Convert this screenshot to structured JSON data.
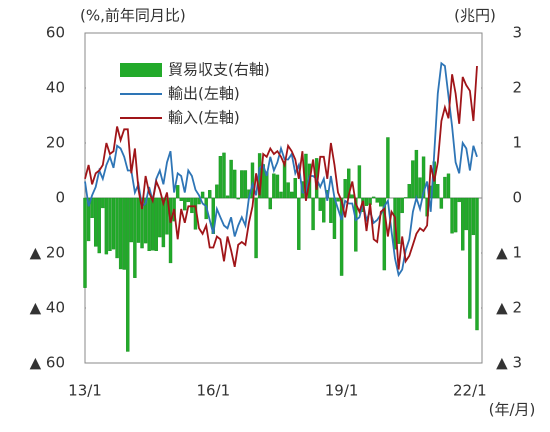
{
  "chart_data": {
    "type": "bar_line",
    "y_label": "(%,前年同月比)",
    "y2_label": "(兆円)",
    "x_label": "(年/月)",
    "categories": [
      "13/1",
      null,
      null,
      null,
      null,
      null,
      null,
      null,
      null,
      null,
      null,
      null,
      null,
      null,
      null,
      null,
      null,
      null,
      null,
      null,
      null,
      null,
      null,
      null,
      null,
      null,
      null,
      null,
      null,
      null,
      null,
      null,
      null,
      null,
      null,
      null,
      "16/1",
      null,
      null,
      null,
      null,
      null,
      null,
      null,
      null,
      null,
      null,
      null,
      null,
      null,
      null,
      null,
      null,
      null,
      null,
      null,
      null,
      null,
      null,
      null,
      null,
      null,
      null,
      null,
      null,
      null,
      null,
      null,
      null,
      null,
      null,
      null,
      "19/1",
      null,
      null,
      null,
      null,
      null,
      null,
      null,
      null,
      null,
      null,
      null,
      null,
      null,
      null,
      null,
      null,
      null,
      null,
      null,
      null,
      null,
      null,
      null,
      null,
      null,
      null,
      null,
      null,
      null,
      null,
      null,
      null,
      null,
      null,
      null,
      "22/1",
      null,
      null
    ],
    "ylim": [
      -60,
      60
    ],
    "yticks": [
      {
        "value": -60,
        "label": "▲ 60"
      },
      {
        "value": -40,
        "label": "▲ 40"
      },
      {
        "value": -20,
        "label": "▲ 20"
      },
      0,
      20,
      40,
      60
    ],
    "y2lim": [
      -3,
      3
    ],
    "y2ticks": [
      {
        "value": -3,
        "label": "▲ 3"
      },
      {
        "value": -2,
        "label": "▲ 2"
      },
      {
        "value": -1,
        "label": "▲ 1"
      },
      0,
      1,
      2,
      3
    ],
    "series": [
      {
        "name": "貿易収支(右軸)",
        "kind": "bar",
        "axis": "y2",
        "color": "#22aa2a",
        "values": [
          -1.63,
          -0.78,
          -0.36,
          -0.88,
          -1.0,
          -0.18,
          -1.02,
          -0.96,
          -0.93,
          -1.09,
          -1.29,
          -1.3,
          -2.79,
          -0.8,
          -1.45,
          -0.81,
          -0.91,
          -0.82,
          -0.96,
          -0.95,
          -0.96,
          -0.71,
          -0.89,
          -0.66,
          -1.18,
          -0.42,
          0.23,
          -0.05,
          -0.22,
          -0.07,
          -0.27,
          -0.57,
          -0.11,
          0.11,
          -0.38,
          0.14,
          -0.65,
          0.24,
          0.76,
          0.82,
          0.04,
          0.69,
          0.51,
          -0.02,
          0.5,
          0.5,
          0.15,
          0.64,
          -1.09,
          0.81,
          0.61,
          0.48,
          -0.2,
          0.44,
          0.42,
          0.11,
          0.67,
          0.28,
          0.11,
          0.36,
          -0.94,
          0.3,
          0.8,
          0.62,
          -0.58,
          0.72,
          -0.23,
          -0.44,
          0.14,
          -0.45,
          -0.74,
          -0.06,
          -1.41,
          0.34,
          0.53,
          0.06,
          -0.97,
          0.59,
          -0.25,
          -0.14,
          -0.12,
          0.02,
          -0.08,
          -0.15,
          -1.31,
          1.1,
          0.0,
          -0.93,
          -0.83,
          -0.27,
          0.01,
          0.25,
          0.68,
          0.87,
          0.37,
          0.75,
          -0.33,
          0.22,
          0.66,
          0.25,
          -0.19,
          0.38,
          0.44,
          -0.64,
          -0.62,
          -0.07,
          -0.95,
          -0.58,
          -2.19,
          -0.67,
          -2.4
        ]
      },
      {
        "name": "輸出(左軸)",
        "kind": "line",
        "color": "#2e75b6",
        "values": [
          6,
          -3,
          1,
          4,
          10,
          7,
          12,
          15,
          11,
          19,
          18,
          15,
          10,
          10,
          2,
          5,
          -3,
          -2,
          4,
          -1,
          7,
          10,
          5,
          13,
          17,
          2,
          9,
          8,
          2,
          10,
          8,
          3,
          1,
          -2,
          -3,
          -8,
          -13,
          -4,
          -7,
          -10,
          -11,
          -7,
          -14,
          -10,
          -7,
          -10,
          0,
          5,
          1,
          11,
          12,
          8,
          15,
          10,
          13,
          18,
          14,
          14,
          16,
          9,
          12,
          2,
          2,
          8,
          8,
          7,
          4,
          7,
          -1,
          8,
          0,
          -4,
          -8,
          -1,
          -2,
          -2,
          -8,
          -7,
          -2,
          -8,
          -5,
          -9,
          -8,
          -6,
          -3,
          -1,
          -12,
          -22,
          -28,
          -26,
          -19,
          -15,
          -5,
          0,
          -4,
          2,
          6,
          -5,
          16,
          38,
          49,
          48,
          37,
          26,
          13,
          9,
          20,
          18,
          10,
          19,
          15
        ]
      },
      {
        "name": "輸入(左軸)",
        "kind": "line",
        "color": "#a01519",
        "values": [
          7,
          12,
          5,
          9,
          10,
          12,
          20,
          16,
          17,
          26,
          21,
          25,
          25,
          9,
          18,
          3,
          -4,
          8,
          2,
          -1,
          6,
          3,
          -2,
          2,
          -9,
          -4,
          -15,
          -4,
          -9,
          -3,
          -3,
          -3,
          -11,
          -13,
          -10,
          -18,
          -18,
          -14,
          -15,
          -23,
          -14,
          -19,
          -25,
          -17,
          -16,
          -17,
          -9,
          -3,
          9,
          1,
          16,
          15,
          18,
          16,
          17,
          15,
          12,
          19,
          17,
          14,
          7,
          17,
          -1,
          6,
          14,
          3,
          15,
          15,
          7,
          20,
          12,
          2,
          -1,
          -7,
          1,
          6,
          -2,
          -5,
          -1,
          -12,
          -2,
          -15,
          -16,
          -5,
          -4,
          -14,
          -5,
          -7,
          -26,
          -14,
          -23,
          -21,
          -17,
          -13,
          -11,
          -12,
          -10,
          12,
          6,
          13,
          28,
          33,
          29,
          45,
          38,
          27,
          44,
          41,
          39,
          28,
          48
        ]
      }
    ]
  }
}
